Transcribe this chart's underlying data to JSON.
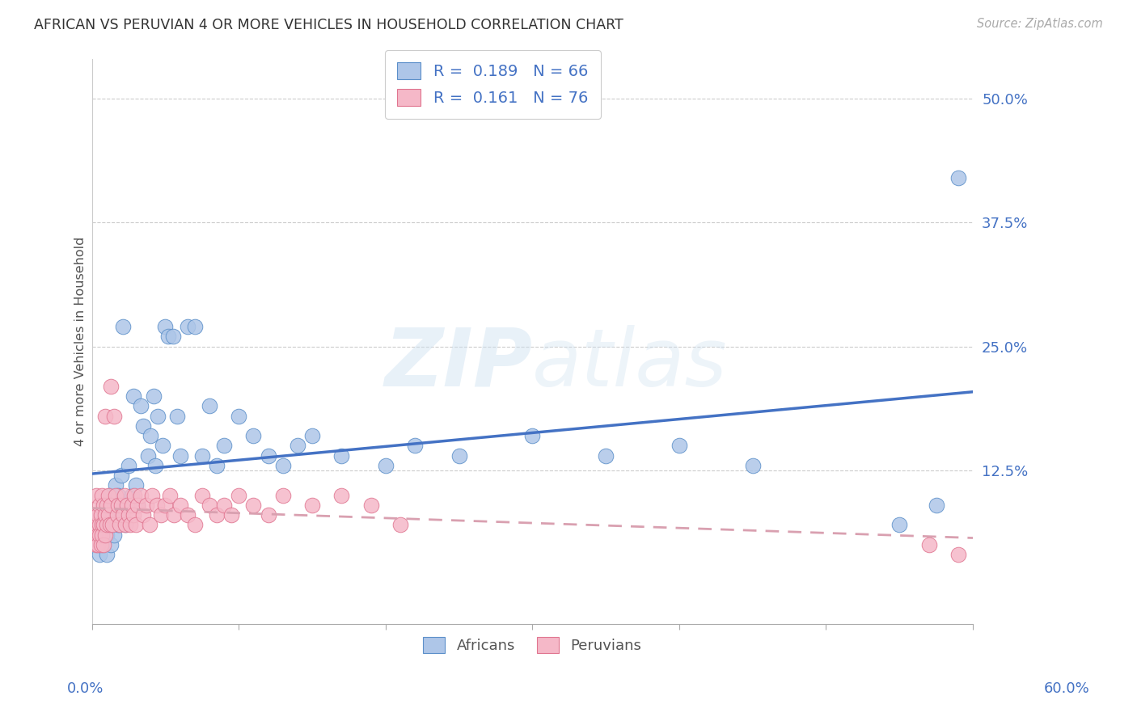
{
  "title": "AFRICAN VS PERUVIAN 4 OR MORE VEHICLES IN HOUSEHOLD CORRELATION CHART",
  "source": "Source: ZipAtlas.com",
  "ylabel": "4 or more Vehicles in Household",
  "ytick_labels": [
    "12.5%",
    "25.0%",
    "37.5%",
    "50.0%"
  ],
  "ytick_values": [
    0.125,
    0.25,
    0.375,
    0.5
  ],
  "xmin": 0.0,
  "xmax": 0.6,
  "ymin": -0.03,
  "ymax": 0.54,
  "african_color": "#aec6e8",
  "peruvian_color": "#f5b8c8",
  "african_edge_color": "#5b8fc9",
  "peruvian_edge_color": "#e07590",
  "african_line_color": "#4472c4",
  "peruvian_line_color": "#d9a0b0",
  "legend_r_african": "0.189",
  "legend_n_african": "66",
  "legend_r_peruvian": "0.161",
  "legend_n_peruvian": "76",
  "watermark": "ZIPatlas",
  "africans_label": "Africans",
  "peruvians_label": "Peruvians",
  "african_x": [
    0.005,
    0.005,
    0.005,
    0.007,
    0.007,
    0.008,
    0.008,
    0.009,
    0.01,
    0.01,
    0.01,
    0.012,
    0.013,
    0.013,
    0.015,
    0.015,
    0.016,
    0.016,
    0.018,
    0.018,
    0.02,
    0.02,
    0.021,
    0.022,
    0.023,
    0.025,
    0.027,
    0.028,
    0.03,
    0.031,
    0.033,
    0.035,
    0.038,
    0.04,
    0.042,
    0.043,
    0.045,
    0.048,
    0.05,
    0.052,
    0.055,
    0.058,
    0.06,
    0.065,
    0.07,
    0.075,
    0.08,
    0.085,
    0.09,
    0.1,
    0.11,
    0.12,
    0.13,
    0.14,
    0.15,
    0.17,
    0.2,
    0.22,
    0.25,
    0.3,
    0.35,
    0.4,
    0.45,
    0.55,
    0.575,
    0.59
  ],
  "african_y": [
    0.07,
    0.05,
    0.04,
    0.08,
    0.06,
    0.09,
    0.05,
    0.07,
    0.06,
    0.04,
    0.08,
    0.1,
    0.07,
    0.05,
    0.09,
    0.06,
    0.11,
    0.08,
    0.07,
    0.1,
    0.12,
    0.08,
    0.27,
    0.09,
    0.07,
    0.13,
    0.1,
    0.2,
    0.11,
    0.09,
    0.19,
    0.17,
    0.14,
    0.16,
    0.2,
    0.13,
    0.18,
    0.15,
    0.27,
    0.26,
    0.26,
    0.18,
    0.14,
    0.27,
    0.27,
    0.14,
    0.19,
    0.13,
    0.15,
    0.18,
    0.16,
    0.14,
    0.13,
    0.15,
    0.16,
    0.14,
    0.13,
    0.15,
    0.14,
    0.16,
    0.14,
    0.15,
    0.13,
    0.07,
    0.09,
    0.42
  ],
  "peruvian_x": [
    0.001,
    0.002,
    0.002,
    0.003,
    0.003,
    0.003,
    0.004,
    0.004,
    0.004,
    0.005,
    0.005,
    0.005,
    0.006,
    0.006,
    0.007,
    0.007,
    0.007,
    0.008,
    0.008,
    0.008,
    0.009,
    0.009,
    0.009,
    0.01,
    0.01,
    0.011,
    0.011,
    0.012,
    0.013,
    0.013,
    0.014,
    0.015,
    0.016,
    0.017,
    0.018,
    0.019,
    0.02,
    0.021,
    0.022,
    0.023,
    0.024,
    0.025,
    0.026,
    0.027,
    0.028,
    0.029,
    0.03,
    0.031,
    0.033,
    0.035,
    0.037,
    0.039,
    0.041,
    0.044,
    0.047,
    0.05,
    0.053,
    0.056,
    0.06,
    0.065,
    0.07,
    0.075,
    0.08,
    0.085,
    0.09,
    0.095,
    0.1,
    0.11,
    0.12,
    0.13,
    0.15,
    0.17,
    0.19,
    0.21,
    0.57,
    0.59
  ],
  "peruvian_y": [
    0.07,
    0.06,
    0.08,
    0.05,
    0.07,
    0.1,
    0.06,
    0.08,
    0.05,
    0.09,
    0.07,
    0.06,
    0.08,
    0.05,
    0.1,
    0.07,
    0.06,
    0.09,
    0.07,
    0.05,
    0.18,
    0.08,
    0.06,
    0.09,
    0.07,
    0.1,
    0.08,
    0.07,
    0.21,
    0.09,
    0.07,
    0.18,
    0.1,
    0.08,
    0.09,
    0.07,
    0.09,
    0.08,
    0.1,
    0.07,
    0.09,
    0.08,
    0.07,
    0.09,
    0.08,
    0.1,
    0.07,
    0.09,
    0.1,
    0.08,
    0.09,
    0.07,
    0.1,
    0.09,
    0.08,
    0.09,
    0.1,
    0.08,
    0.09,
    0.08,
    0.07,
    0.1,
    0.09,
    0.08,
    0.09,
    0.08,
    0.1,
    0.09,
    0.08,
    0.1,
    0.09,
    0.1,
    0.09,
    0.07,
    0.05,
    0.04
  ]
}
